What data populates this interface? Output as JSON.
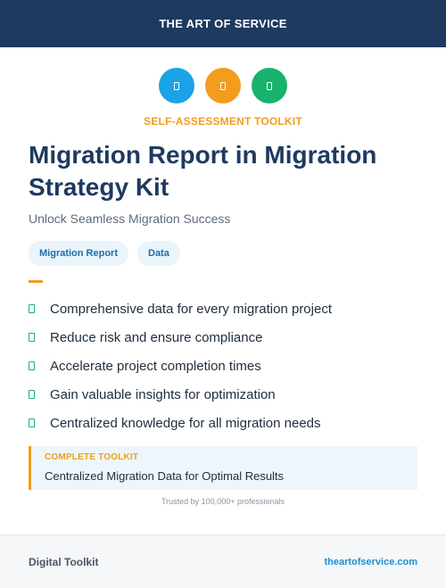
{
  "header": {
    "brand": "THE ART OF SERVICE"
  },
  "icons": [
    {
      "name": "document-icon",
      "color": "#1aa3e6"
    },
    {
      "name": "document-icon",
      "color": "#f29d1e"
    },
    {
      "name": "document-icon",
      "color": "#18b26d"
    }
  ],
  "eyebrow": "SELF-ASSESSMENT TOOLKIT",
  "title": "Migration Report in Migration Strategy Kit",
  "subtitle": "Unlock Seamless Migration Success",
  "tags": [
    "Migration Report",
    "Data"
  ],
  "features": [
    "Comprehensive data for every migration project",
    "Reduce risk and ensure compliance",
    "Accelerate project completion times",
    "Gain valuable insights for optimization",
    "Centralized knowledge for all migration needs"
  ],
  "callout": {
    "label": "COMPLETE TOOLKIT",
    "text": "Centralized Migration Data for Optimal Results"
  },
  "trusted": "Trusted by 100,000+ professionals",
  "footer": {
    "left": "Digital Toolkit",
    "right": "theartofservice.com"
  },
  "colors": {
    "navy": "#1e3a5f",
    "accent_orange": "#f29d1e",
    "accent_blue": "#1aa3e6",
    "accent_green": "#18b26d"
  }
}
